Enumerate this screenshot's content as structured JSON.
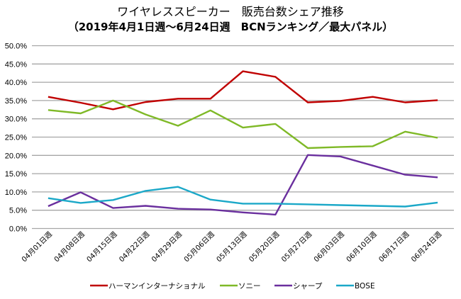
{
  "chart_data": {
    "type": "line",
    "title": "ワイヤレススピーカー　販売台数シェア推移",
    "subtitle": "（2019年4月1日週～6月24日週　BCNランキング／最大パネル）",
    "xlabel": "",
    "ylabel": "",
    "ylim": [
      0,
      50
    ],
    "y_ticks": [
      "0.0%",
      "5.0%",
      "10.0%",
      "15.0%",
      "20.0%",
      "25.0%",
      "30.0%",
      "35.0%",
      "40.0%",
      "45.0%",
      "50.0%"
    ],
    "grid": true,
    "legend_position": "bottom",
    "categories": [
      "04月01日週",
      "04月08日週",
      "04月15日週",
      "04月22日週",
      "04月29日週",
      "05月06日週",
      "05月13日週",
      "05月20日週",
      "05月27日週",
      "06月03日週",
      "06月10日週",
      "06月17日週",
      "06月24日週"
    ],
    "series": [
      {
        "name": "ハーマンインターナショナル",
        "color": "#c00000",
        "values": [
          36.0,
          34.4,
          32.6,
          34.6,
          35.5,
          35.5,
          43.0,
          41.5,
          34.5,
          34.9,
          36.0,
          34.5,
          35.1
        ]
      },
      {
        "name": "ソニー",
        "color": "#7fb927",
        "values": [
          32.4,
          31.5,
          35.0,
          31.2,
          28.1,
          32.3,
          27.6,
          28.6,
          22.0,
          22.3,
          22.5,
          26.5,
          24.8
        ]
      },
      {
        "name": "シャープ",
        "color": "#6a2f9e",
        "values": [
          6.1,
          9.9,
          5.6,
          6.2,
          5.4,
          5.2,
          4.4,
          3.8,
          20.1,
          19.7,
          17.2,
          14.7,
          14.0
        ]
      },
      {
        "name": "BOSE",
        "color": "#1ba8c8",
        "values": [
          8.3,
          7.0,
          7.8,
          10.3,
          11.4,
          7.9,
          6.8,
          6.8,
          6.6,
          6.4,
          6.2,
          6.0,
          7.1
        ]
      }
    ]
  }
}
